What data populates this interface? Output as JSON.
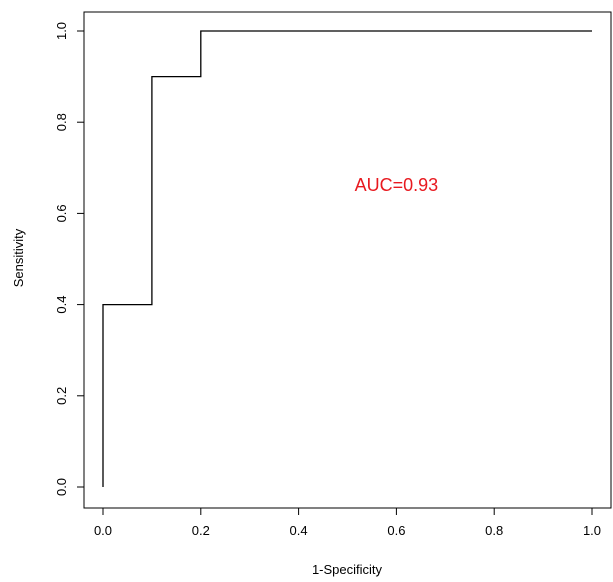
{
  "chart_data": {
    "type": "line",
    "title": "",
    "xlabel": "1-Specificity",
    "ylabel": "Sensitivity",
    "xlim": [
      0.0,
      1.0
    ],
    "ylim": [
      0.0,
      1.0
    ],
    "grid": false,
    "legend": "none",
    "x_ticks": [
      "0.0",
      "0.2",
      "0.4",
      "0.6",
      "0.8",
      "1.0"
    ],
    "y_ticks": [
      "0.0",
      "0.2",
      "0.4",
      "0.6",
      "0.8",
      "1.0"
    ],
    "series": [
      {
        "x": [
          0.0,
          0.0,
          0.1,
          0.1,
          0.2,
          0.2,
          1.0
        ],
        "y": [
          0.0,
          0.4,
          0.4,
          0.9,
          0.9,
          1.0,
          1.0
        ],
        "color": "#000000"
      }
    ],
    "annotations": [
      {
        "text": "AUC=0.93",
        "x": 0.6,
        "y": 0.66,
        "color": "#e8191f"
      }
    ]
  }
}
